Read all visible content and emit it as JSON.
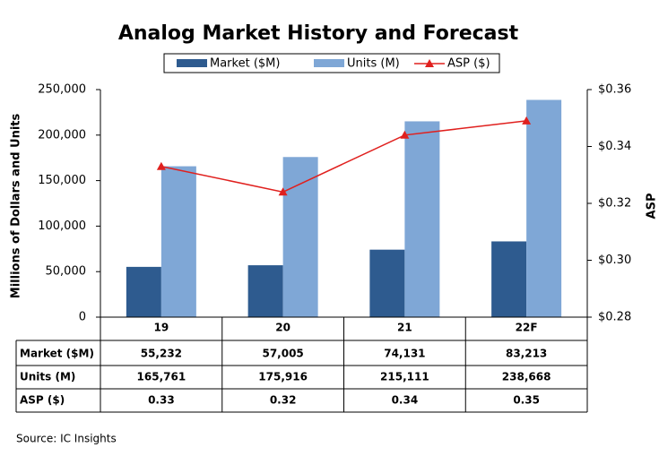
{
  "chart_data": {
    "type": "bar_line_table",
    "title": "Analog Market History and Forecast",
    "y_label": "Millions of Dollars and Units",
    "y2_label": "ASP",
    "categories": [
      "19",
      "20",
      "21",
      "22F"
    ],
    "series": [
      {
        "name": "Market ($M)",
        "color": "#2e5b8f",
        "kind": "bar",
        "values": [
          55232,
          57005,
          74131,
          83213
        ],
        "value_labels": [
          "55,232",
          "57,005",
          "74,131",
          "83,213"
        ]
      },
      {
        "name": "Units (M)",
        "color": "#7fa7d6",
        "kind": "bar",
        "values": [
          165761,
          175916,
          215111,
          238668
        ],
        "value_labels": [
          "165,761",
          "175,916",
          "215,111",
          "238,668"
        ]
      },
      {
        "name": "ASP ($)",
        "color": "#e0201e",
        "kind": "line",
        "axis": "y2",
        "values": [
          0.333,
          0.324,
          0.344,
          0.349
        ],
        "value_labels": [
          "0.33",
          "0.32",
          "0.34",
          "0.35"
        ]
      }
    ],
    "ylim": [
      0,
      250000
    ],
    "yticks": [
      0,
      {
        "value": 50000,
        "label": "50,000"
      },
      {
        "value": 100000,
        "label": "100,000"
      },
      {
        "value": 150000,
        "label": "150,000"
      },
      {
        "value": 200000,
        "label": "200,000"
      },
      {
        "value": 250000,
        "label": "250,000"
      }
    ],
    "y2lim": [
      0.28,
      0.36
    ],
    "y2ticks": [
      {
        "value": 0.28,
        "label": "$0.28"
      },
      {
        "value": 0.3,
        "label": "$0.30"
      },
      {
        "value": 0.32,
        "label": "$0.32"
      },
      {
        "value": 0.34,
        "label": "$0.34"
      },
      {
        "value": 0.36,
        "label": "$0.36"
      }
    ],
    "grid": false,
    "source": "Source:  IC Insights"
  }
}
